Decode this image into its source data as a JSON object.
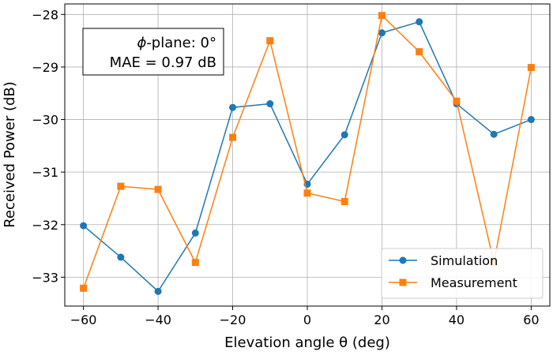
{
  "chart_data": {
    "type": "line",
    "title": "",
    "xlabel": "Elevation angle θ (deg)",
    "ylabel": "Received Power (dB)",
    "xlim": [
      -65,
      65
    ],
    "ylim": [
      -33.55,
      -27.8
    ],
    "grid": true,
    "x": [
      -60,
      -50,
      -40,
      -30,
      -20,
      -10,
      0,
      10,
      20,
      30,
      40,
      50,
      60
    ],
    "xticks": [
      -60,
      -40,
      -20,
      0,
      20,
      40,
      60
    ],
    "xtick_labels": [
      "−60",
      "−40",
      "−20",
      "0",
      "20",
      "40",
      "60"
    ],
    "yticks": [
      -33,
      -32,
      -31,
      -30,
      -29,
      -28
    ],
    "ytick_labels": [
      "−33",
      "−32",
      "−31",
      "−30",
      "−29",
      "−28"
    ],
    "series": [
      {
        "name": "Simulation",
        "color": "#1f77b4",
        "marker": "circle",
        "values": [
          -32.02,
          -32.62,
          -33.27,
          -32.16,
          -29.77,
          -29.7,
          -31.23,
          -30.29,
          -28.35,
          -28.14,
          -29.7,
          -30.28,
          -30.0
        ]
      },
      {
        "name": "Measurement",
        "color": "#ff7f0e",
        "marker": "square",
        "values": [
          -33.21,
          -31.27,
          -31.33,
          -32.72,
          -30.34,
          -28.5,
          -31.4,
          -31.56,
          -28.02,
          -28.71,
          -29.65,
          -32.72,
          -29.01
        ]
      }
    ],
    "legend_position": "bottom-right",
    "annotation": {
      "line1_symbol": "ϕ",
      "line1_text": "-plane: 0°",
      "line2": "MAE = 0.97 dB"
    }
  }
}
